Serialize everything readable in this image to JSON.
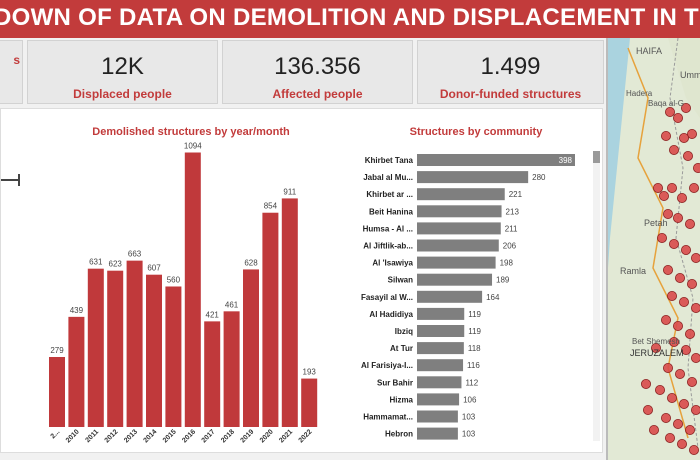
{
  "banner": {
    "title": "DOWN OF DATA ON DEMOLITION AND DISPLACEMENT IN THE WE"
  },
  "kpis": [
    {
      "value": "",
      "label": "s"
    },
    {
      "value": "12K",
      "label": "Displaced people"
    },
    {
      "value": "136.356",
      "label": "Affected people"
    },
    {
      "value": "1.499",
      "label": "Donor-funded structures"
    }
  ],
  "colors": {
    "banner": "#c23b3b",
    "bar_red": "#c0393b",
    "bar_gray": "#7f7f7f",
    "map_dot": "#d94a4a"
  },
  "chart_data": [
    {
      "type": "bar",
      "title": "Demolished structures by year/month",
      "categories": [
        "2...",
        "2010",
        "2011",
        "2012",
        "2013",
        "2014",
        "2015",
        "2016",
        "2017",
        "2018",
        "2019",
        "2020",
        "2021",
        "2022"
      ],
      "values": [
        279,
        439,
        631,
        623,
        663,
        607,
        560,
        1094,
        421,
        461,
        628,
        854,
        911,
        193
      ],
      "data_labels": [
        "279",
        "439",
        "631",
        "623",
        "663",
        "607",
        "560",
        "1094",
        "421",
        "461",
        "628",
        "854",
        "911",
        "193"
      ],
      "ylim": [
        0,
        1100
      ]
    },
    {
      "type": "bar",
      "orientation": "horizontal",
      "title": "Structures by community",
      "categories": [
        "Khirbet Tana",
        "Jabal al Mu...",
        "Khirbet ar ...",
        "Beit Hanina",
        "Humsa - Al ...",
        "Al Jiftlik-ab...",
        "Al 'Isawiya",
        "Silwan",
        "Fasayil al W...",
        "Al Hadidiya",
        "Ibziq",
        "At Tur",
        "Al Farisiya-I...",
        "Sur Bahir",
        "Hizma",
        "Hammamat...",
        "Hebron"
      ],
      "values": [
        398,
        280,
        221,
        213,
        211,
        206,
        198,
        189,
        164,
        119,
        119,
        118,
        116,
        112,
        106,
        103,
        103
      ],
      "xlim": [
        0,
        398
      ]
    }
  ],
  "map": {
    "labels": {
      "haifa": "HAIFA",
      "umm": "Umm",
      "hadera": "Hadera",
      "baqa": "Baqa al-G",
      "petah": "Petah",
      "ramla": "Ramla",
      "bet_shemesh": "Bet Shemesh",
      "jeruzalem": "JERUZALEM"
    }
  }
}
